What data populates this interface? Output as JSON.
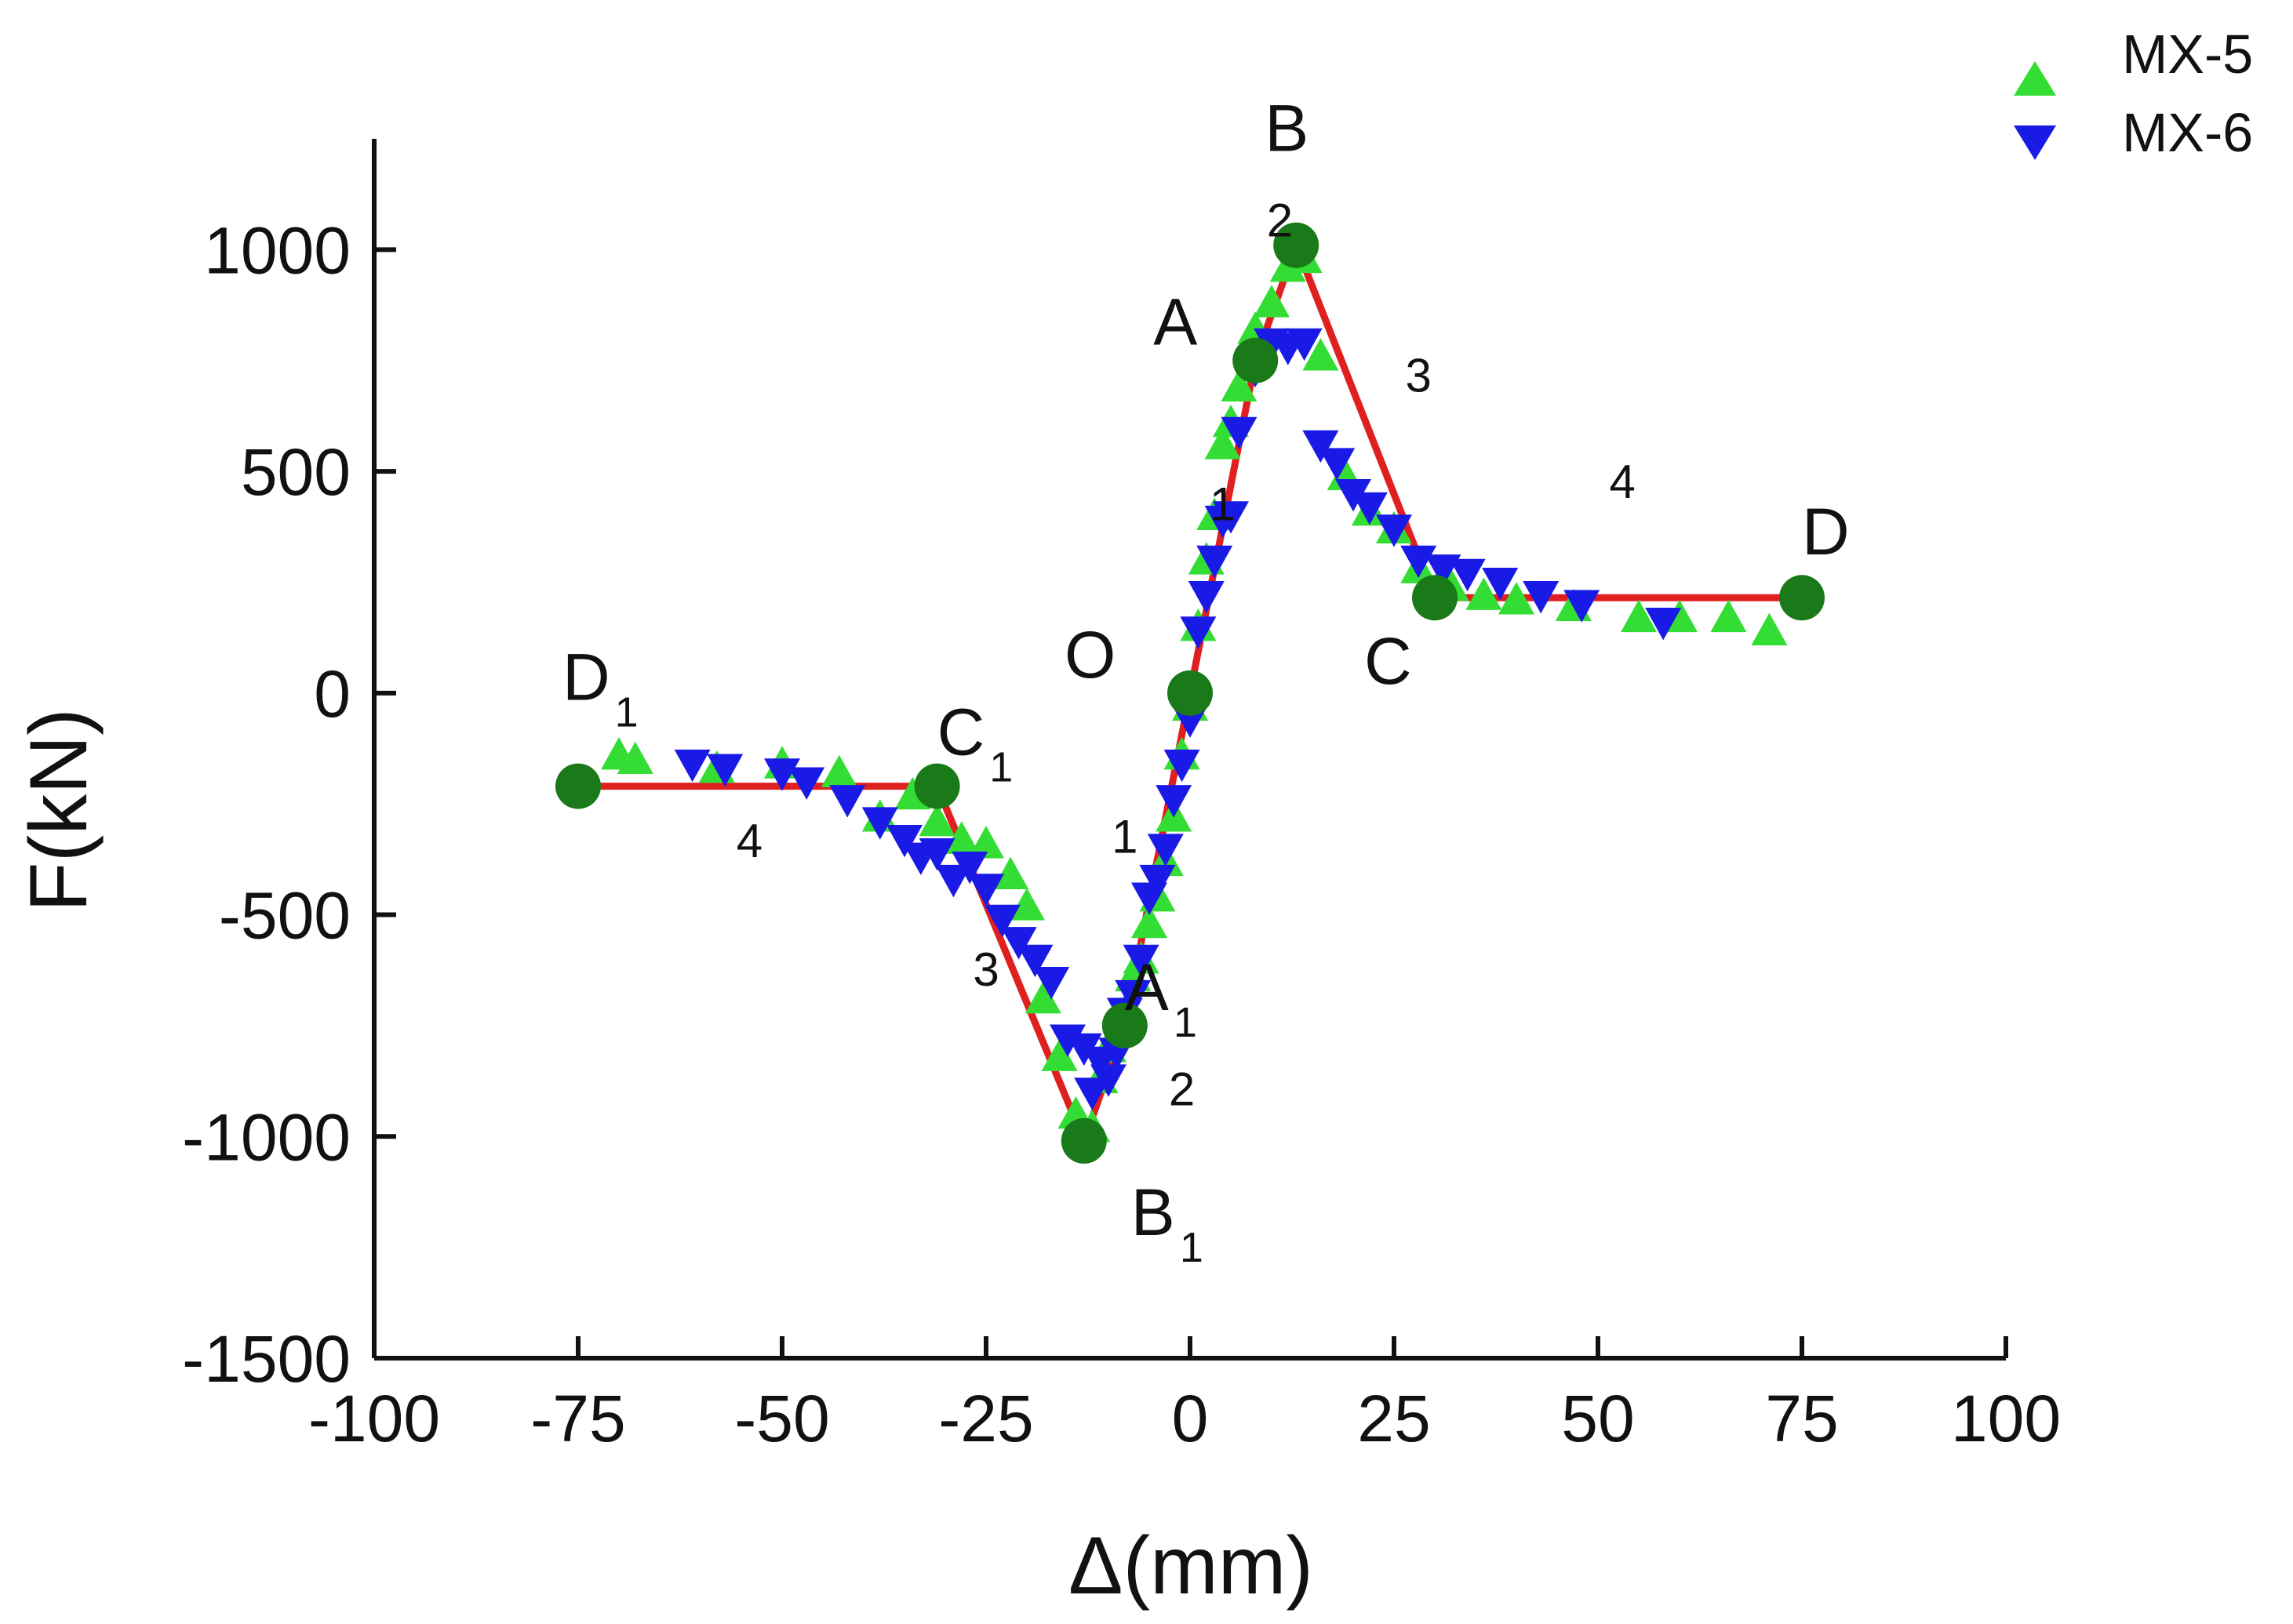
{
  "chart_data": {
    "type": "scatter",
    "title": "",
    "xlabel": "Δ(mm)",
    "ylabel": "F(kN)",
    "xlim": [
      -100,
      100
    ],
    "ylim": [
      -1500,
      1250
    ],
    "xticks": [
      -100,
      -75,
      -50,
      -25,
      0,
      25,
      50,
      75,
      100
    ],
    "yticks": [
      -1500,
      -1000,
      -500,
      0,
      500,
      1000
    ],
    "xtick_labels": [
      "-100",
      "-75",
      "-50",
      "-25",
      "0",
      "25",
      "50",
      "75",
      "100"
    ],
    "ytick_labels": [
      "-1500",
      "-1000",
      "-500",
      "0",
      "500",
      "1000"
    ],
    "grid": false,
    "legend_position": "top-right",
    "colors": {
      "mx5": "#33dd33",
      "mx6": "#1a1ae6",
      "model": "#e02020",
      "key_point": "#1a7a1a",
      "axis": "#111111"
    },
    "series": [
      {
        "name": "MX-5",
        "marker": "triangle-up",
        "x": [
          -70,
          -68,
          -58,
          -50,
          -43,
          -38,
          -34,
          -31,
          -28,
          -25,
          -22,
          -20,
          -18,
          -16,
          -14,
          -12,
          -11,
          -10,
          -8,
          -7,
          -6,
          -5,
          -4,
          -3,
          -2,
          -1,
          0,
          1,
          2,
          3,
          4,
          5,
          6,
          8,
          10,
          12,
          14,
          16,
          19,
          22,
          25,
          28,
          32,
          36,
          40,
          47,
          55,
          60,
          66,
          71
        ],
        "y": [
          -140,
          -150,
          -170,
          -160,
          -180,
          -280,
          -230,
          -290,
          -330,
          -340,
          -410,
          -480,
          -690,
          -820,
          -950,
          -980,
          -870,
          -800,
          -720,
          -640,
          -600,
          -520,
          -460,
          -380,
          -280,
          -140,
          -30,
          150,
          300,
          400,
          560,
          610,
          690,
          820,
          880,
          960,
          980,
          760,
          490,
          410,
          370,
          280,
          240,
          220,
          210,
          195,
          170,
          170,
          170,
          140
        ]
      },
      {
        "name": "MX-6",
        "marker": "triangle-down",
        "x": [
          -61,
          -57,
          -50,
          -47,
          -42,
          -38,
          -35,
          -33,
          -31,
          -29,
          -27,
          -25,
          -23,
          -21,
          -19,
          -17,
          -15,
          -13,
          -12,
          -11,
          -10,
          -9,
          -8,
          -7,
          -6,
          -5,
          -4,
          -3,
          -2,
          -1,
          0,
          1,
          2,
          3,
          4,
          5,
          6,
          8,
          10,
          12,
          14,
          16,
          18,
          20,
          22,
          25,
          28,
          31,
          34,
          38,
          43,
          48,
          58
        ],
        "y": [
          -160,
          -170,
          -180,
          -200,
          -240,
          -290,
          -330,
          -370,
          -360,
          -420,
          -390,
          -440,
          -510,
          -560,
          -600,
          -650,
          -780,
          -800,
          -900,
          -830,
          -870,
          -810,
          -720,
          -680,
          -600,
          -460,
          -420,
          -350,
          -240,
          -160,
          -60,
          140,
          220,
          300,
          390,
          400,
          590,
          730,
          790,
          780,
          790,
          560,
          520,
          450,
          420,
          370,
          300,
          280,
          270,
          250,
          220,
          200,
          160
        ]
      }
    ],
    "model_curve": {
      "name": "skeleton-model",
      "x": [
        -75,
        -31,
        -13,
        -8,
        0,
        8,
        13,
        30,
        75
      ],
      "y": [
        -210,
        -210,
        -1010,
        -750,
        0,
        750,
        1010,
        215,
        215
      ]
    },
    "key_points": [
      {
        "label": "D",
        "sub": "1",
        "x": -75,
        "y": -210
      },
      {
        "label": "C",
        "sub": "1",
        "x": -31,
        "y": -210
      },
      {
        "label": "B",
        "sub": "1",
        "x": -13,
        "y": -1010
      },
      {
        "label": "A",
        "sub": "1",
        "x": -8,
        "y": -750
      },
      {
        "label": "O",
        "sub": "",
        "x": 0,
        "y": 0
      },
      {
        "label": "A",
        "sub": "",
        "x": 8,
        "y": 750
      },
      {
        "label": "B",
        "sub": "",
        "x": 13,
        "y": 1010
      },
      {
        "label": "C",
        "sub": "",
        "x": 30,
        "y": 215
      },
      {
        "label": "D",
        "sub": "",
        "x": 75,
        "y": 215
      }
    ],
    "segment_labels": [
      {
        "text": "1",
        "x": 4,
        "y": 390
      },
      {
        "text": "2",
        "x": 11,
        "y": 1030
      },
      {
        "text": "3",
        "x": 28,
        "y": 680
      },
      {
        "text": "4",
        "x": 53,
        "y": 440
      },
      {
        "text": "1",
        "x": -8,
        "y": -360
      },
      {
        "text": "2",
        "x": -1,
        "y": -930
      },
      {
        "text": "3",
        "x": -25,
        "y": -660
      },
      {
        "text": "4",
        "x": -54,
        "y": -370
      }
    ]
  }
}
